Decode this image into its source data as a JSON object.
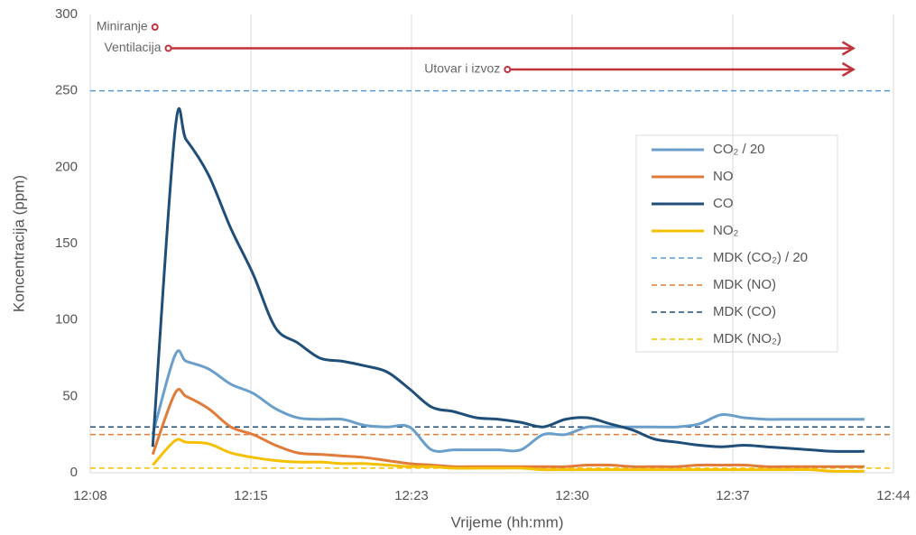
{
  "chart_data": {
    "type": "line",
    "x_label": "Vrijeme (hh:mm)",
    "y_label": "Koncentracija (ppm)",
    "x": [
      731.5,
      732.5,
      733,
      734,
      735,
      736,
      737,
      738,
      739,
      740,
      741,
      742,
      743,
      744,
      745,
      746,
      747,
      748,
      749,
      750,
      751,
      752,
      753,
      754,
      755,
      756,
      757,
      758,
      759,
      760,
      761,
      762,
      763.4
    ],
    "series": [
      {
        "name": "CO₂ / 20",
        "color": "#6a9fcb",
        "values": [
          25,
          77,
          73,
          68,
          58,
          52,
          42,
          36,
          35,
          35,
          31,
          30,
          30,
          15,
          15,
          15,
          15,
          15,
          25,
          25,
          30,
          30,
          30,
          30,
          30,
          32,
          38,
          36,
          35,
          35,
          35,
          35,
          35
        ]
      },
      {
        "name": "NO",
        "color": "#e07b39",
        "values": [
          12,
          52,
          50,
          42,
          30,
          25,
          18,
          13,
          12,
          11,
          10,
          8,
          6,
          5,
          4,
          4,
          4,
          4,
          4,
          4,
          5,
          5,
          4,
          4,
          4,
          5,
          5,
          5,
          4,
          4,
          4,
          4,
          4
        ]
      },
      {
        "name": "CO",
        "color": "#1f4e79",
        "values": [
          17,
          224,
          218,
          195,
          160,
          130,
          95,
          85,
          75,
          73,
          70,
          66,
          55,
          43,
          40,
          36,
          35,
          33,
          30,
          35,
          36,
          32,
          28,
          22,
          20,
          18,
          17,
          18,
          17,
          16,
          15,
          14,
          14
        ]
      },
      {
        "name": "NO₂",
        "color": "#f5c000",
        "values": [
          5,
          21,
          20,
          19,
          13,
          10,
          8,
          7,
          7,
          6,
          6,
          5,
          4,
          4,
          3,
          3,
          3,
          3,
          2,
          2,
          2,
          2,
          2,
          2,
          2,
          2,
          2,
          2,
          2,
          2,
          2,
          1,
          1
        ]
      }
    ],
    "reference_lines": [
      {
        "name": "MDK (CO₂) / 20",
        "color": "#5b9bd5",
        "value": 250
      },
      {
        "name": "MDK (NO)",
        "color": "#e07b39",
        "value": 25
      },
      {
        "name": "MDK (CO)",
        "color": "#1f4e79",
        "value": 30
      },
      {
        "name": "MDK (NO₂)",
        "color": "#f5c000",
        "value": 3
      }
    ],
    "annotations": [
      {
        "text": "Miniranje",
        "x": 731.6
      },
      {
        "text": "Ventilacija",
        "x": 732.2,
        "x_end": 762.9
      },
      {
        "text": "Utovar i izvoz",
        "x": 747.4,
        "x_end": 762.9
      }
    ],
    "annotation_color": "#c0333a",
    "xlim": [
      728.7,
      764.7
    ],
    "xticks": [
      {
        "value": 728.7,
        "label": "12:08"
      },
      {
        "value": 735.9,
        "label": "12:15"
      },
      {
        "value": 743.1,
        "label": "12:23"
      },
      {
        "value": 750.3,
        "label": "12:30"
      },
      {
        "value": 757.5,
        "label": "12:37"
      },
      {
        "value": 764.7,
        "label": "12:44"
      }
    ],
    "ylim": [
      0,
      300
    ],
    "yticks": [
      0,
      50,
      100,
      150,
      200,
      250,
      300
    ],
    "grid": true
  }
}
